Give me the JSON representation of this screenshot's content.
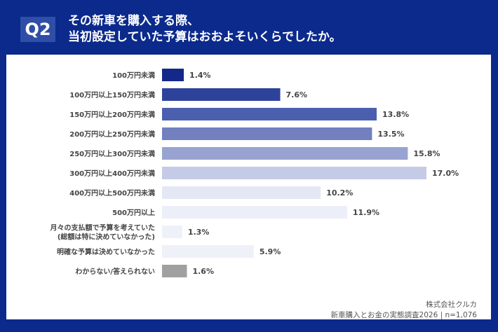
{
  "header": {
    "badge": "Q2",
    "title_line1": "その新車を購入する際、",
    "title_line2": "当初設定していた予算はおおよそいくらでしたか。"
  },
  "chart_data": {
    "type": "bar",
    "orientation": "horizontal",
    "unit": "%",
    "categories": [
      "100万円未満",
      "100万円以上150万円未満",
      "150万円以上200万円未満",
      "200万円以上250万円未満",
      "250万円以上300万円未満",
      "300万円以上400万円未満",
      "400万円以上500万円未満",
      "500万円以上",
      "月々の支払額で予算を考えていた\n(総額は特に決めていなかった)",
      "明確な予算は決めていなかった",
      "わからない/答えられない"
    ],
    "values": [
      1.4,
      7.6,
      13.8,
      13.5,
      15.8,
      17.0,
      10.2,
      11.9,
      1.3,
      5.9,
      1.6
    ],
    "labels": [
      "1.4%",
      "7.6%",
      "13.8%",
      "13.5%",
      "15.8%",
      "17.0%",
      "10.2%",
      "11.9%",
      "1.3%",
      "5.9%",
      "1.6%"
    ],
    "colors": [
      "#14288a",
      "#2d439b",
      "#4a5fae",
      "#7280c0",
      "#98a3d2",
      "#c5cbe6",
      "#e4e8f4",
      "#eceff8",
      "#eef1f8",
      "#eff1f8",
      "#a0a0a0"
    ],
    "xlim": [
      0,
      17.0
    ],
    "grid": false
  },
  "footer": {
    "company": "株式会社クルカ",
    "source": "新車購入とお金の実態調査2026 | n=1,076"
  }
}
